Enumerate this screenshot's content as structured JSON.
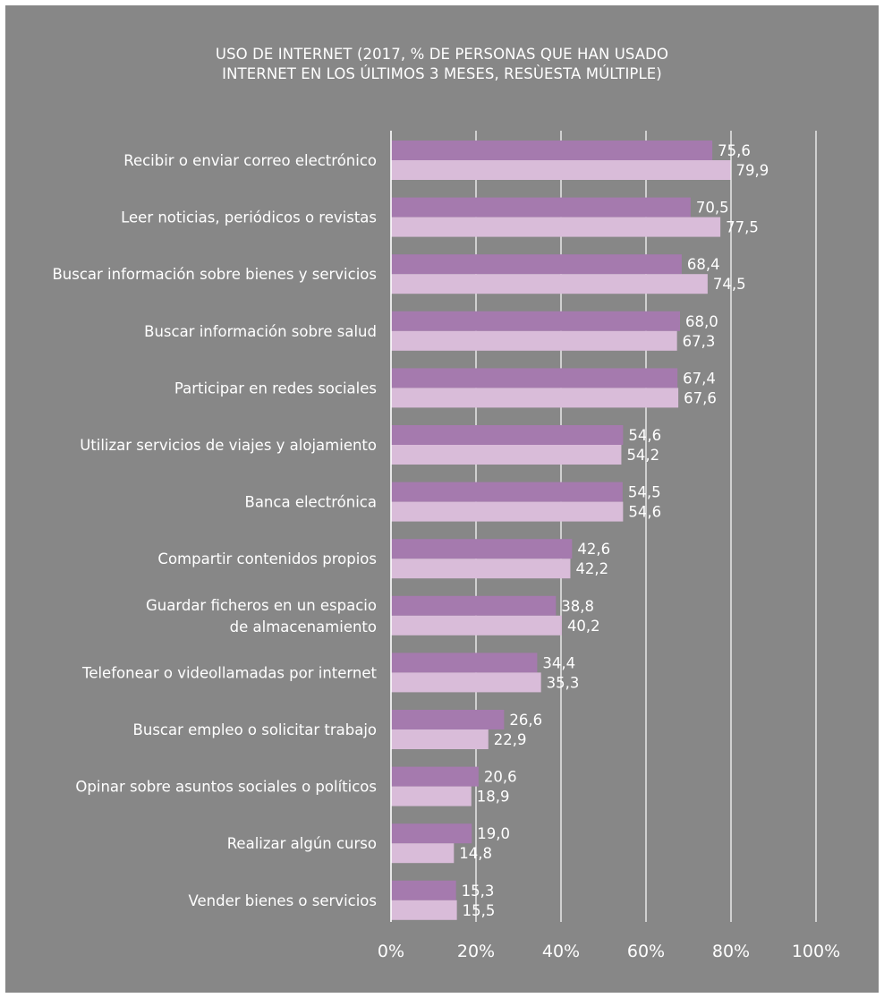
{
  "colors": {
    "background": "#878787",
    "series1": "#a57aae",
    "series2": "#d9bcd9",
    "text": "#ffffff",
    "grid": "#ffffff"
  },
  "chart_data": {
    "type": "bar",
    "orientation": "horizontal",
    "title_lines": [
      "USO DE INTERNET (2017, % DE PERSONAS QUE HAN USADO",
      "INTERNET EN LOS ÚLTIMOS 3 MESES, RESÙESTA MÚLTIPLE)"
    ],
    "categories": [
      [
        "Recibir o enviar correo electrónico"
      ],
      [
        "Leer noticias, periódicos o revistas"
      ],
      [
        "Buscar información sobre bienes y servicios"
      ],
      [
        "Buscar información sobre salud"
      ],
      [
        "Participar en redes sociales"
      ],
      [
        "Utilizar servicios de viajes y alojamiento"
      ],
      [
        "Banca electrónica"
      ],
      [
        "Compartir contenidos propios"
      ],
      [
        "Guardar ficheros en un espacio",
        "de almacenamiento"
      ],
      [
        "Telefonear o videollamadas por internet"
      ],
      [
        "Buscar empleo o solicitar trabajo"
      ],
      [
        "Opinar sobre asuntos sociales o políticos"
      ],
      [
        "Realizar algún curso"
      ],
      [
        "Vender bienes o servicios"
      ]
    ],
    "series": [
      {
        "values": [
          75.6,
          70.5,
          68.4,
          68.0,
          67.4,
          54.6,
          54.5,
          42.6,
          38.8,
          34.4,
          26.6,
          20.6,
          19.0,
          15.3
        ],
        "labels": [
          "75,6",
          "70,5",
          "68,4",
          "68,0",
          "67,4",
          "54,6",
          "54,5",
          "42,6",
          "38,8",
          "34,4",
          "26,6",
          "20,6",
          "19,0",
          "15,3"
        ]
      },
      {
        "values": [
          79.9,
          77.5,
          74.5,
          67.3,
          67.6,
          54.2,
          54.6,
          42.2,
          40.2,
          35.3,
          22.9,
          18.9,
          14.8,
          15.5
        ],
        "labels": [
          "79,9",
          "77,5",
          "74,5",
          "67,3",
          "67,6",
          "54,2",
          "54,6",
          "42,2",
          "40,2",
          "35,3",
          "22,9",
          "18,9",
          "14,8",
          "15,5"
        ]
      }
    ],
    "xlim": [
      0,
      100
    ],
    "x_ticks": [
      0,
      20,
      40,
      60,
      80,
      100
    ],
    "x_tick_labels": [
      "0%",
      "20%",
      "40%",
      "60%",
      "80%",
      "100%"
    ],
    "grid": true,
    "legend": "none"
  }
}
